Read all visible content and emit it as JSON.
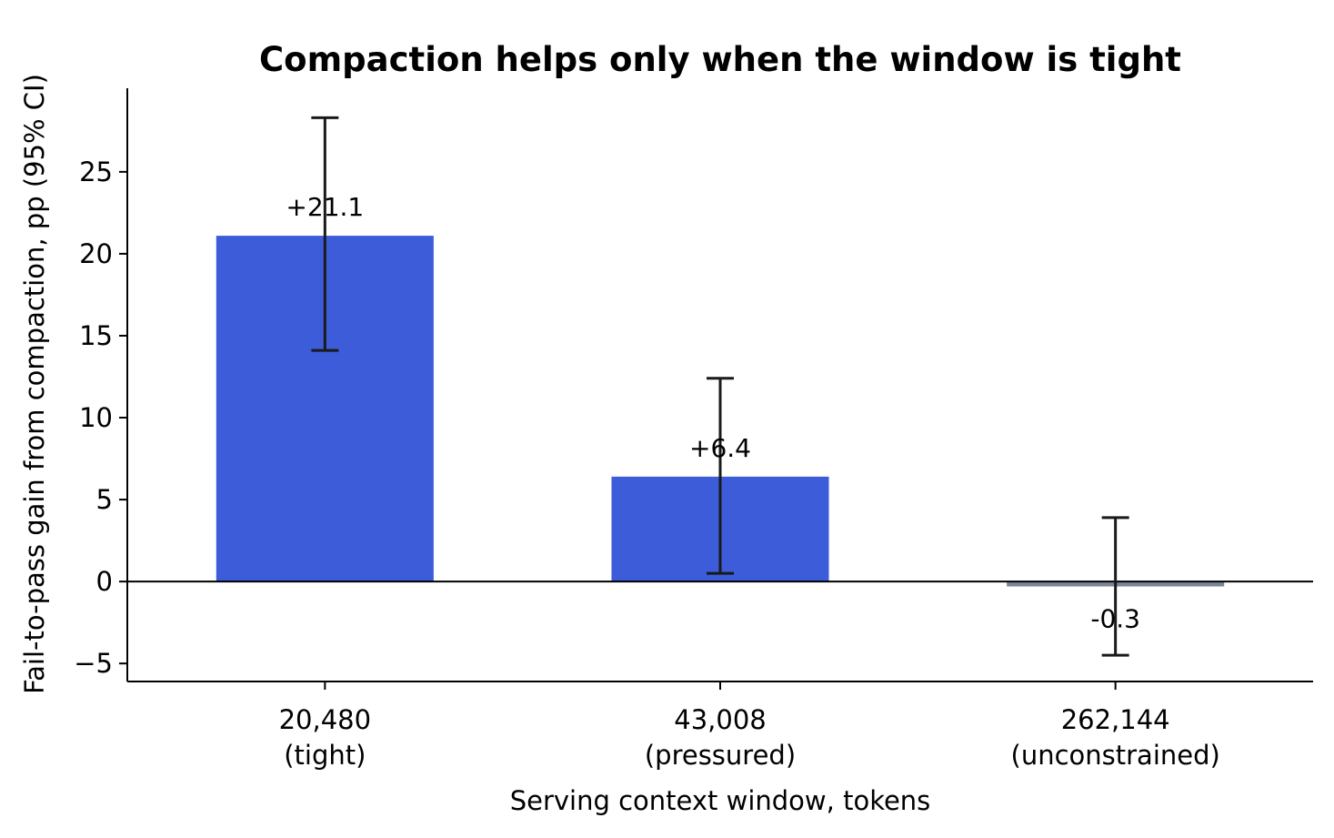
{
  "chart_data": {
    "type": "bar",
    "title": "Compaction helps only when the window is tight",
    "xlabel": "Serving context window, tokens",
    "ylabel": "Fail-to-pass gain from compaction, pp (95% CI)",
    "categories": [
      {
        "value": "20,480",
        "note": "(tight)"
      },
      {
        "value": "43,008",
        "note": "(pressured)"
      },
      {
        "value": "262,144",
        "note": "(unconstrained)"
      }
    ],
    "values": [
      21.1,
      6.4,
      -0.3
    ],
    "ci_lower": [
      14.1,
      0.5,
      -4.5
    ],
    "ci_upper": [
      28.3,
      12.4,
      3.9
    ],
    "data_labels": [
      "+21.1",
      "+6.4",
      "-0.3"
    ],
    "bar_colors": [
      "#3d5cd9",
      "#3d5cd9",
      "#7a8599"
    ],
    "ylim": [
      -6.1,
      30.1
    ],
    "yticks": [
      -5,
      0,
      5,
      10,
      15,
      20,
      25
    ],
    "ytick_labels": [
      "−5",
      "0",
      "5",
      "10",
      "15",
      "20",
      "25"
    ],
    "zero_line": true,
    "grid": false,
    "legend": "none"
  }
}
